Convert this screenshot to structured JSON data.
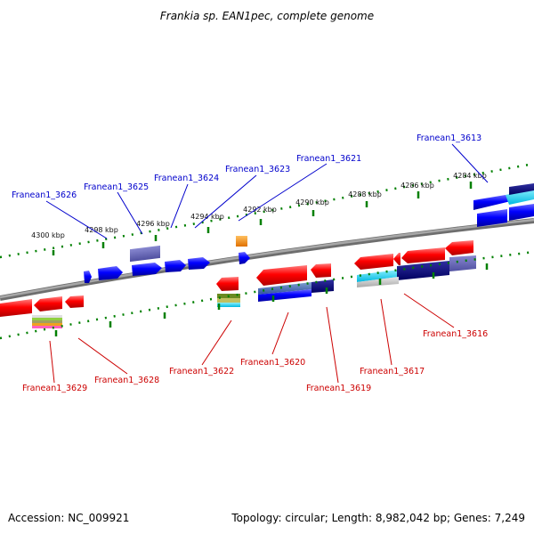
{
  "title": "Frankia sp. EAN1pec, complete genome",
  "footer": {
    "accession": "Accession: NC_009921",
    "summary": "Topology: circular; Length: 8,982,042 bp; Genes: 7,249"
  },
  "colors": {
    "forward_label": "#0000cc",
    "reverse_label": "#cc0000",
    "tick": "#008000",
    "backbone": "#808080"
  },
  "ticks": [
    "4300 kbp",
    "4298 kbp",
    "4296 kbp",
    "4294 kbp",
    "4292 kbp",
    "4290 kbp",
    "4288 kbp",
    "4286 kbp",
    "4284 kbp"
  ],
  "genes_forward": [
    "Franean1_3626",
    "Franean1_3625",
    "Franean1_3624",
    "Franean1_3623",
    "Franean1_3621",
    "Franean1_3613"
  ],
  "genes_reverse": [
    "Franean1_3629",
    "Franean1_3628",
    "Franean1_3622",
    "Franean1_3620",
    "Franean1_3619",
    "Franean1_3617",
    "Franean1_3616"
  ]
}
